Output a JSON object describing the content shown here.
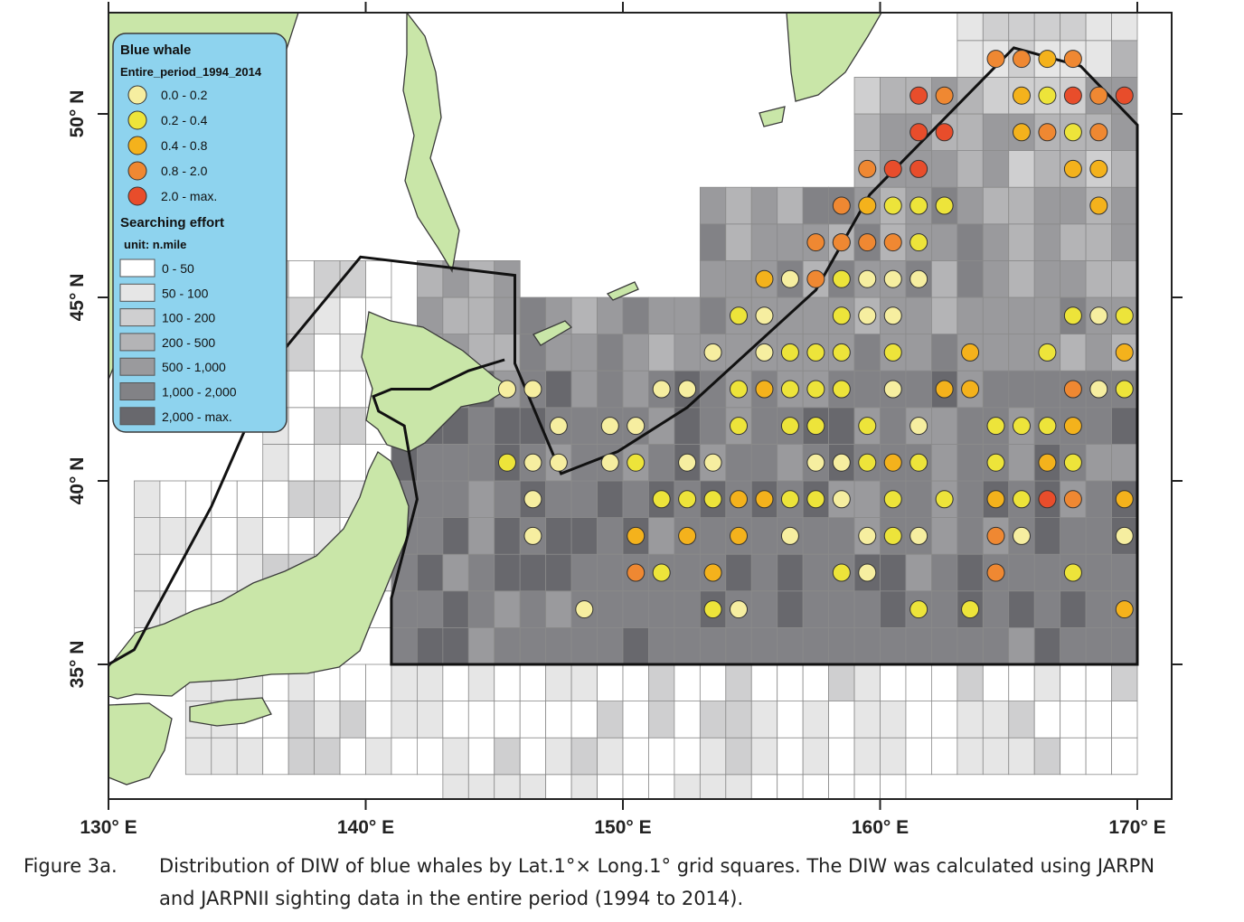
{
  "legend": {
    "title": "Blue whale",
    "period": "Entire_period_1994_2014",
    "diw_classes": [
      {
        "label": "0.0 - 0.2",
        "color": "#f6eea0"
      },
      {
        "label": "0.2 - 0.4",
        "color": "#ede43a"
      },
      {
        "label": "0.4 - 0.8",
        "color": "#f4b21c"
      },
      {
        "label": "0.8 - 2.0",
        "color": "#ef8832"
      },
      {
        "label": "2.0 - max.",
        "color": "#e84d2b"
      }
    ],
    "effort_title": "Searching effort",
    "effort_unit": "unit: n.mile",
    "effort_classes": [
      {
        "label": "0 - 50",
        "color": "#ffffff"
      },
      {
        "label": "50 - 100",
        "color": "#e6e6e6"
      },
      {
        "label": "100 - 200",
        "color": "#cfcfd0"
      },
      {
        "label": "200 - 500",
        "color": "#b4b4b6"
      },
      {
        "label": "500 - 1,000",
        "color": "#9a9a9d"
      },
      {
        "label": "1,000 - 2,000",
        "color": "#828286"
      },
      {
        "label": "2,000 - max.",
        "color": "#68686d"
      }
    ],
    "background_color": "#8ed3ee"
  },
  "axes": {
    "x_ticks": [
      {
        "value": 130,
        "label": "130° E"
      },
      {
        "value": 140,
        "label": "140° E"
      },
      {
        "value": 150,
        "label": "150° E"
      },
      {
        "value": 160,
        "label": "160° E"
      },
      {
        "value": 170,
        "label": "170° E"
      }
    ],
    "y_ticks": [
      {
        "value": 35,
        "label": "35° N"
      },
      {
        "value": 40,
        "label": "40° N"
      },
      {
        "value": 45,
        "label": "45° N"
      },
      {
        "value": 50,
        "label": "50° N"
      }
    ],
    "lon_range": [
      130,
      171
    ],
    "lat_range": [
      31,
      53.5
    ]
  },
  "colors": {
    "land": "#c9e6a8",
    "coast": "#3a3a3a",
    "grid_line": "#8a8a8a",
    "boundary": "#111111"
  },
  "caption": {
    "label": "Figure  3a.",
    "line1": "Distribution of DIW of blue whales by Lat.1°× Long.1° grid squares. The DIW was calculated using JARPN",
    "line2": "and JARPNII sighting data in the entire period (1994 to 2014)."
  },
  "research_area_boundary": [
    [
      130,
      35
    ],
    [
      131,
      35.4
    ],
    [
      134,
      39.3
    ],
    [
      136.5,
      43.3
    ],
    [
      139.8,
      46.1
    ],
    [
      145.8,
      45.6
    ],
    [
      145.8,
      43.2
    ],
    [
      147.6,
      40.2
    ],
    [
      149.8,
      40.8
    ],
    [
      152.5,
      42
    ],
    [
      157.5,
      45.2
    ],
    [
      159.6,
      47.8
    ],
    [
      165.2,
      51.8
    ],
    [
      167.8,
      51.3
    ],
    [
      170,
      49.7
    ],
    [
      170,
      35
    ],
    [
      141,
      35
    ],
    [
      141,
      36.8
    ],
    [
      142,
      39.5
    ],
    [
      141.5,
      41.5
    ],
    [
      140.5,
      41.9
    ],
    [
      140.3,
      42.3
    ],
    [
      141,
      42.5
    ],
    [
      142.5,
      42.5
    ],
    [
      144,
      43
    ],
    [
      145.4,
      43.3
    ]
  ],
  "sightings": [
    [
      164.5,
      51.5,
      3
    ],
    [
      165.5,
      51.5,
      3
    ],
    [
      166.5,
      51.5,
      2
    ],
    [
      167.5,
      51.5,
      3
    ],
    [
      161.5,
      50.5,
      4
    ],
    [
      162.5,
      50.5,
      3
    ],
    [
      165.5,
      50.5,
      2
    ],
    [
      166.5,
      50.5,
      1
    ],
    [
      167.5,
      50.5,
      4
    ],
    [
      168.5,
      50.5,
      3
    ],
    [
      169.5,
      50.5,
      4
    ],
    [
      161.5,
      49.5,
      4
    ],
    [
      162.5,
      49.5,
      4
    ],
    [
      165.5,
      49.5,
      2
    ],
    [
      166.5,
      49.5,
      3
    ],
    [
      167.5,
      49.5,
      1
    ],
    [
      168.5,
      49.5,
      3
    ],
    [
      159.5,
      48.5,
      3
    ],
    [
      160.5,
      48.5,
      4
    ],
    [
      161.5,
      48.5,
      4
    ],
    [
      167.5,
      48.5,
      2
    ],
    [
      168.5,
      48.5,
      2
    ],
    [
      158.5,
      47.5,
      3
    ],
    [
      159.5,
      47.5,
      2
    ],
    [
      160.5,
      47.5,
      1
    ],
    [
      161.5,
      47.5,
      1
    ],
    [
      162.5,
      47.5,
      1
    ],
    [
      168.5,
      47.5,
      2
    ],
    [
      158.5,
      46.5,
      3
    ],
    [
      159.5,
      46.5,
      3
    ],
    [
      160.5,
      46.5,
      3
    ],
    [
      161.5,
      46.5,
      1
    ],
    [
      157.5,
      46.5,
      3
    ],
    [
      158.5,
      46.5,
      3
    ],
    [
      155.5,
      45.5,
      2
    ],
    [
      156.5,
      45.5,
      0
    ],
    [
      157.5,
      45.5,
      3
    ],
    [
      158.5,
      45.5,
      1
    ],
    [
      159.5,
      45.5,
      0
    ],
    [
      160.5,
      45.5,
      0
    ],
    [
      161.5,
      45.5,
      0
    ],
    [
      154.5,
      44.5,
      1
    ],
    [
      155.5,
      44.5,
      0
    ],
    [
      158.5,
      44.5,
      1
    ],
    [
      159.5,
      44.5,
      0
    ],
    [
      160.5,
      44.5,
      0
    ],
    [
      167.5,
      44.5,
      1
    ],
    [
      168.5,
      44.5,
      0
    ],
    [
      169.5,
      44.5,
      1
    ],
    [
      153.5,
      43.5,
      0
    ],
    [
      155.5,
      43.5,
      0
    ],
    [
      156.5,
      43.5,
      1
    ],
    [
      157.5,
      43.5,
      1
    ],
    [
      158.5,
      43.5,
      1
    ],
    [
      160.5,
      43.5,
      1
    ],
    [
      163.5,
      43.5,
      2
    ],
    [
      166.5,
      43.5,
      1
    ],
    [
      169.5,
      43.5,
      2
    ],
    [
      145.5,
      42.5,
      0
    ],
    [
      146.5,
      42.5,
      0
    ],
    [
      151.5,
      42.5,
      0
    ],
    [
      152.5,
      42.5,
      0
    ],
    [
      154.5,
      42.5,
      1
    ],
    [
      155.5,
      42.5,
      2
    ],
    [
      156.5,
      42.5,
      1
    ],
    [
      157.5,
      42.5,
      1
    ],
    [
      158.5,
      42.5,
      1
    ],
    [
      160.5,
      42.5,
      0
    ],
    [
      162.5,
      42.5,
      2
    ],
    [
      163.5,
      42.5,
      2
    ],
    [
      167.5,
      42.5,
      3
    ],
    [
      168.5,
      42.5,
      0
    ],
    [
      169.5,
      42.5,
      1
    ],
    [
      147.5,
      41.5,
      0
    ],
    [
      149.5,
      41.5,
      0
    ],
    [
      150.5,
      41.5,
      0
    ],
    [
      154.5,
      41.5,
      1
    ],
    [
      156.5,
      41.5,
      1
    ],
    [
      157.5,
      41.5,
      1
    ],
    [
      159.5,
      41.5,
      1
    ],
    [
      161.5,
      41.5,
      0
    ],
    [
      164.5,
      41.5,
      1
    ],
    [
      165.5,
      41.5,
      1
    ],
    [
      166.5,
      41.5,
      1
    ],
    [
      167.5,
      41.5,
      2
    ],
    [
      145.5,
      40.5,
      1
    ],
    [
      146.5,
      40.5,
      0
    ],
    [
      147.5,
      40.5,
      0
    ],
    [
      149.5,
      40.5,
      0
    ],
    [
      150.5,
      40.5,
      1
    ],
    [
      152.5,
      40.5,
      0
    ],
    [
      153.5,
      40.5,
      0
    ],
    [
      157.5,
      40.5,
      0
    ],
    [
      158.5,
      40.5,
      0
    ],
    [
      159.5,
      40.5,
      1
    ],
    [
      160.5,
      40.5,
      2
    ],
    [
      161.5,
      40.5,
      1
    ],
    [
      164.5,
      40.5,
      1
    ],
    [
      166.5,
      40.5,
      2
    ],
    [
      167.5,
      40.5,
      1
    ],
    [
      146.5,
      39.5,
      0
    ],
    [
      151.5,
      39.5,
      1
    ],
    [
      152.5,
      39.5,
      1
    ],
    [
      153.5,
      39.5,
      1
    ],
    [
      154.5,
      39.5,
      2
    ],
    [
      155.5,
      39.5,
      2
    ],
    [
      156.5,
      39.5,
      1
    ],
    [
      157.5,
      39.5,
      1
    ],
    [
      158.5,
      39.5,
      0
    ],
    [
      160.5,
      39.5,
      1
    ],
    [
      162.5,
      39.5,
      1
    ],
    [
      164.5,
      39.5,
      2
    ],
    [
      165.5,
      39.5,
      1
    ],
    [
      166.5,
      39.5,
      4
    ],
    [
      167.5,
      39.5,
      3
    ],
    [
      169.5,
      39.5,
      2
    ],
    [
      146.5,
      38.5,
      0
    ],
    [
      150.5,
      38.5,
      2
    ],
    [
      152.5,
      38.5,
      2
    ],
    [
      154.5,
      38.5,
      2
    ],
    [
      156.5,
      38.5,
      0
    ],
    [
      159.5,
      38.5,
      0
    ],
    [
      160.5,
      38.5,
      1
    ],
    [
      161.5,
      38.5,
      0
    ],
    [
      164.5,
      38.5,
      3
    ],
    [
      165.5,
      38.5,
      0
    ],
    [
      169.5,
      38.5,
      0
    ],
    [
      150.5,
      37.5,
      3
    ],
    [
      151.5,
      37.5,
      1
    ],
    [
      153.5,
      37.5,
      2
    ],
    [
      158.5,
      37.5,
      1
    ],
    [
      159.5,
      37.5,
      0
    ],
    [
      164.5,
      37.5,
      3
    ],
    [
      167.5,
      37.5,
      1
    ],
    [
      148.5,
      36.5,
      0
    ],
    [
      153.5,
      36.5,
      1
    ],
    [
      154.5,
      36.5,
      0
    ],
    [
      161.5,
      36.5,
      1
    ],
    [
      163.5,
      36.5,
      1
    ],
    [
      169.5,
      36.5,
      2
    ]
  ]
}
